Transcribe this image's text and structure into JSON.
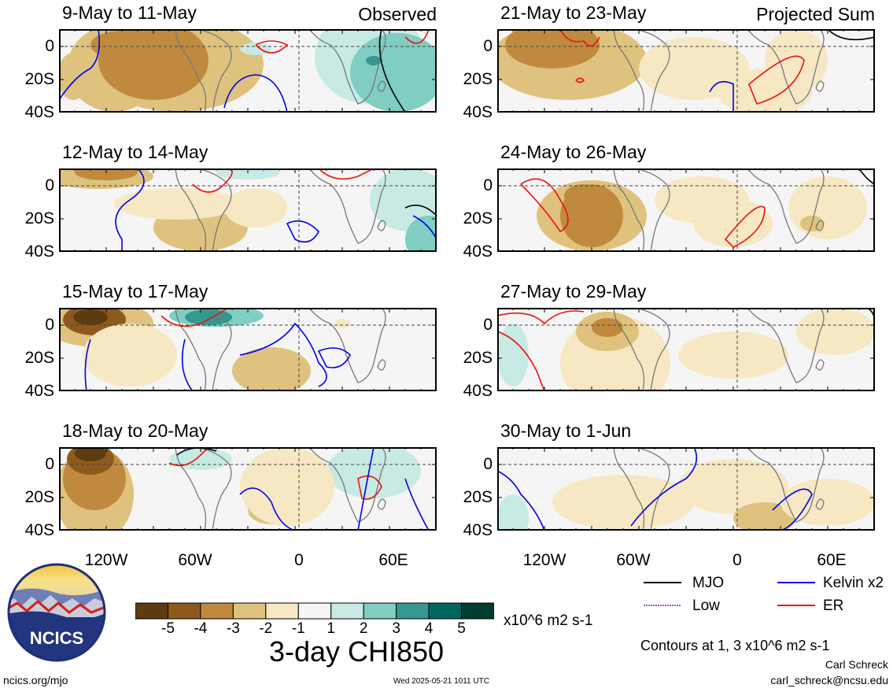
{
  "panels": [
    {
      "title": "9-May to 11-May",
      "tag": "Observed"
    },
    {
      "title": "12-May to 14-May",
      "tag": ""
    },
    {
      "title": "15-May to 17-May",
      "tag": ""
    },
    {
      "title": "18-May to 20-May",
      "tag": ""
    },
    {
      "title": "21-May to 23-May",
      "tag": "Projected Sum"
    },
    {
      "title": "24-May to 26-May",
      "tag": ""
    },
    {
      "title": "27-May to 29-May",
      "tag": ""
    },
    {
      "title": "30-May to 1-Jun",
      "tag": ""
    }
  ],
  "axes": {
    "lat_labels": [
      "0",
      "20S",
      "40S"
    ],
    "lon_labels": [
      "120W",
      "60W",
      "0",
      "60E"
    ]
  },
  "colorbar": {
    "labels": [
      "-5",
      "-4",
      "-3",
      "-2",
      "-1",
      "1",
      "2",
      "3",
      "4",
      "5"
    ],
    "colors": [
      "#5e3c11",
      "#8e5a1c",
      "#c08a3e",
      "#dfc27d",
      "#f6e8c3",
      "#f5f5f5",
      "#c7eae5",
      "#80cdc1",
      "#35978f",
      "#01665e",
      "#003c30"
    ],
    "units": "x10^6 m2 s-1",
    "title": "3-day CHI850"
  },
  "legend": {
    "items": [
      {
        "label": "MJO",
        "color": "#000000"
      },
      {
        "label": "Kelvin x2",
        "color": "#0000ee"
      },
      {
        "label": "Low",
        "color": "#9b59d6"
      },
      {
        "label": "ER",
        "color": "#ee1111"
      }
    ],
    "contours_note": "Contours at 1, 3 x10^6 m2 s-1"
  },
  "logo": {
    "text": "NCICS"
  },
  "footer": {
    "site": "ncics.org/mjo",
    "timestamp": "Wed 2025-05-21 1011 UTC",
    "author": "Carl Schreck",
    "email": "carl_schreck@ncsu.edu"
  }
}
